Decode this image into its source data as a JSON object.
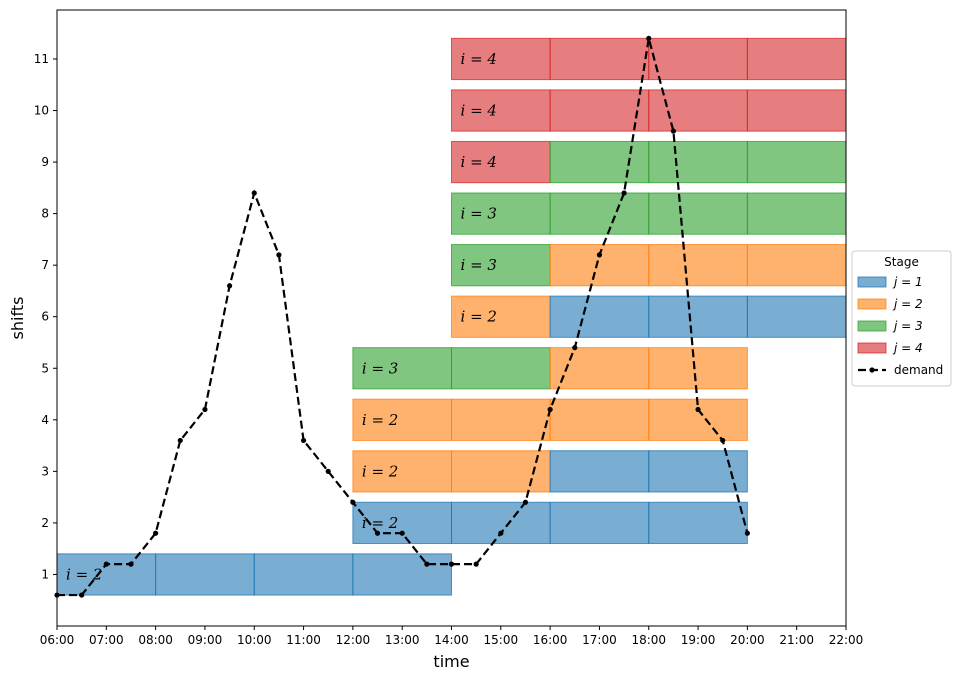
{
  "chart_data": {
    "type": "bar",
    "xlabel": "time",
    "ylabel": "shifts",
    "xlim": [
      "06:00",
      "22:00"
    ],
    "ylim": [
      0.0,
      11.95
    ],
    "x_ticks": [
      "06:00",
      "07:00",
      "08:00",
      "09:00",
      "10:00",
      "11:00",
      "12:00",
      "13:00",
      "14:00",
      "15:00",
      "16:00",
      "17:00",
      "18:00",
      "19:00",
      "20:00",
      "21:00",
      "22:00"
    ],
    "y_ticks": [
      "1",
      "2",
      "3",
      "4",
      "5",
      "6",
      "7",
      "8",
      "9",
      "10",
      "11"
    ],
    "stage_colors": {
      "1": "#1f77b4",
      "2": "#ff7f0e",
      "3": "#2ca02c",
      "4": "#d62728"
    },
    "shifts": [
      {
        "shift": 1,
        "label": "i = 2",
        "segments": [
          {
            "start": "06:00",
            "end": "08:00",
            "stage": 1
          },
          {
            "start": "08:00",
            "end": "10:00",
            "stage": 1
          },
          {
            "start": "10:00",
            "end": "12:00",
            "stage": 1
          },
          {
            "start": "12:00",
            "end": "14:00",
            "stage": 1
          }
        ]
      },
      {
        "shift": 2,
        "label": "i = 2",
        "segments": [
          {
            "start": "12:00",
            "end": "14:00",
            "stage": 1
          },
          {
            "start": "14:00",
            "end": "16:00",
            "stage": 1
          },
          {
            "start": "16:00",
            "end": "18:00",
            "stage": 1
          },
          {
            "start": "18:00",
            "end": "20:00",
            "stage": 1
          }
        ]
      },
      {
        "shift": 3,
        "label": "i = 2",
        "segments": [
          {
            "start": "12:00",
            "end": "14:00",
            "stage": 2
          },
          {
            "start": "14:00",
            "end": "16:00",
            "stage": 2
          },
          {
            "start": "16:00",
            "end": "18:00",
            "stage": 1
          },
          {
            "start": "18:00",
            "end": "20:00",
            "stage": 1
          }
        ]
      },
      {
        "shift": 4,
        "label": "i = 2",
        "segments": [
          {
            "start": "12:00",
            "end": "14:00",
            "stage": 2
          },
          {
            "start": "14:00",
            "end": "16:00",
            "stage": 2
          },
          {
            "start": "16:00",
            "end": "18:00",
            "stage": 2
          },
          {
            "start": "18:00",
            "end": "20:00",
            "stage": 2
          }
        ]
      },
      {
        "shift": 5,
        "label": "i = 3",
        "segments": [
          {
            "start": "12:00",
            "end": "14:00",
            "stage": 3
          },
          {
            "start": "14:00",
            "end": "16:00",
            "stage": 3
          },
          {
            "start": "16:00",
            "end": "18:00",
            "stage": 2
          },
          {
            "start": "18:00",
            "end": "20:00",
            "stage": 2
          }
        ]
      },
      {
        "shift": 6,
        "label": "i = 2",
        "segments": [
          {
            "start": "14:00",
            "end": "16:00",
            "stage": 2
          },
          {
            "start": "16:00",
            "end": "18:00",
            "stage": 1
          },
          {
            "start": "18:00",
            "end": "20:00",
            "stage": 1
          },
          {
            "start": "20:00",
            "end": "22:00",
            "stage": 1
          }
        ]
      },
      {
        "shift": 7,
        "label": "i = 3",
        "segments": [
          {
            "start": "14:00",
            "end": "16:00",
            "stage": 3
          },
          {
            "start": "16:00",
            "end": "18:00",
            "stage": 2
          },
          {
            "start": "18:00",
            "end": "20:00",
            "stage": 2
          },
          {
            "start": "20:00",
            "end": "22:00",
            "stage": 2
          }
        ]
      },
      {
        "shift": 8,
        "label": "i = 3",
        "segments": [
          {
            "start": "14:00",
            "end": "16:00",
            "stage": 3
          },
          {
            "start": "16:00",
            "end": "18:00",
            "stage": 3
          },
          {
            "start": "18:00",
            "end": "20:00",
            "stage": 3
          },
          {
            "start": "20:00",
            "end": "22:00",
            "stage": 3
          }
        ]
      },
      {
        "shift": 9,
        "label": "i = 4",
        "segments": [
          {
            "start": "14:00",
            "end": "16:00",
            "stage": 4
          },
          {
            "start": "16:00",
            "end": "18:00",
            "stage": 3
          },
          {
            "start": "18:00",
            "end": "20:00",
            "stage": 3
          },
          {
            "start": "20:00",
            "end": "22:00",
            "stage": 3
          }
        ]
      },
      {
        "shift": 10,
        "label": "i = 4",
        "segments": [
          {
            "start": "14:00",
            "end": "16:00",
            "stage": 4
          },
          {
            "start": "16:00",
            "end": "18:00",
            "stage": 4
          },
          {
            "start": "18:00",
            "end": "20:00",
            "stage": 4
          },
          {
            "start": "20:00",
            "end": "22:00",
            "stage": 4
          }
        ]
      },
      {
        "shift": 11,
        "label": "i = 4",
        "segments": [
          {
            "start": "14:00",
            "end": "16:00",
            "stage": 4
          },
          {
            "start": "16:00",
            "end": "18:00",
            "stage": 4
          },
          {
            "start": "18:00",
            "end": "20:00",
            "stage": 4
          },
          {
            "start": "20:00",
            "end": "22:00",
            "stage": 4
          }
        ]
      }
    ],
    "demand": {
      "name": "demand",
      "x": [
        "06:00",
        "06:30",
        "07:00",
        "07:30",
        "08:00",
        "08:30",
        "09:00",
        "09:30",
        "10:00",
        "10:30",
        "11:00",
        "11:30",
        "12:00",
        "12:30",
        "13:00",
        "13:30",
        "14:00",
        "14:30",
        "15:00",
        "15:30",
        "16:00",
        "16:30",
        "17:00",
        "17:30",
        "18:00",
        "18:30",
        "19:00",
        "19:30",
        "20:00"
      ],
      "y": [
        0.6,
        0.6,
        1.2,
        1.2,
        1.8,
        3.6,
        4.2,
        6.6,
        8.4,
        7.2,
        3.6,
        3.0,
        2.4,
        1.8,
        1.8,
        1.2,
        1.2,
        1.2,
        1.8,
        2.4,
        4.2,
        5.4,
        7.2,
        8.4,
        11.4,
        9.6,
        4.2,
        3.6,
        1.8
      ]
    },
    "legend": {
      "title": "Stage",
      "placement": "center-right",
      "entries": [
        "j = 1",
        "j = 2",
        "j = 3",
        "j = 4",
        "demand"
      ]
    }
  }
}
